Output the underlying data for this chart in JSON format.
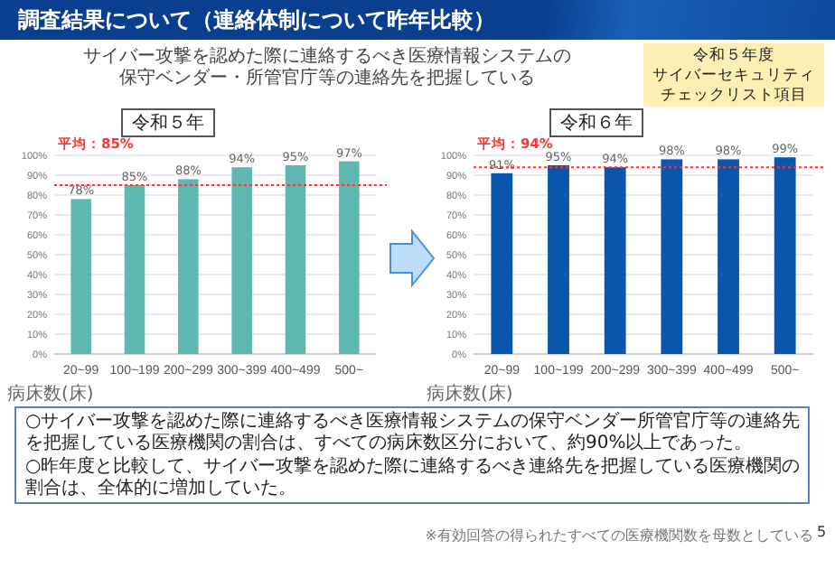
{
  "chart_data": [
    {
      "type": "bar",
      "title": "令和５年",
      "xlabel": "病床数(床)",
      "annotations": [
        "調査結果について（連絡体制について昨年比較）",
        "サイバー攻撃を認めた際に連絡するべき医療情報システムの保守ベンダー・所管官庁等の連絡先を把握している",
        "令和５年度",
        "サイバーセキュリティ",
        "チェックリスト項目"
      ],
      "categories": [
        "20~99",
        "100~199",
        "200~299",
        "300~399",
        "400~499",
        "500~"
      ],
      "values": [
        78,
        85,
        88,
        94,
        95,
        97
      ],
      "color": "#5fb8b0",
      "value_labels": [
        "78%",
        "85%",
        "88%",
        "94%",
        "95%",
        "97%"
      ],
      "ylim": [
        0,
        100
      ],
      "yticks": [
        {
          "value": 0,
          "label": "0%"
        },
        {
          "value": 10,
          "label": "10%"
        },
        {
          "value": 20,
          "label": "20%"
        },
        {
          "value": 30,
          "label": "30%"
        },
        {
          "value": 40,
          "label": "40%"
        },
        {
          "value": 50,
          "label": "50%"
        },
        {
          "value": 60,
          "label": "60%"
        },
        {
          "value": 70,
          "label": "70%"
        },
        {
          "value": 80,
          "label": "80%"
        },
        {
          "value": 90,
          "label": "90%"
        },
        {
          "value": 100,
          "label": "100%"
        }
      ],
      "ref_lines": [
        {
          "axis": "y",
          "value": 85,
          "label": "平均：85%",
          "color": "#ff3333",
          "line_style": "dotted"
        }
      ],
      "grid": "y"
    },
    {
      "type": "bar",
      "title": "令和６年",
      "xlabel": "病床数(床)",
      "annotations": [
        "○サイバー攻撃を認めた際に連絡するべき医療情報システムの保守ベンダー所管官庁等の連絡先を把握している医療機関の割合は、すべての病床数区分において、約90%以上であった。",
        "○昨年度と比較して、サイバー攻撃を認めた際に連絡するべき連絡先を把握している医療機関の割合は、全体的に増加していた。",
        "※有効回答の得られたすべての医療機関数を母数としている",
        "5"
      ],
      "categories": [
        "20~99",
        "100~199",
        "200~299",
        "300~399",
        "400~499",
        "500~"
      ],
      "values": [
        91,
        95,
        94,
        98,
        98,
        99
      ],
      "color": "#0b56ad",
      "value_labels": [
        "91%",
        "95%",
        "94%",
        "98%",
        "98%",
        "99%"
      ],
      "ylim": [
        0,
        100
      ],
      "yticks": [
        {
          "value": 0,
          "label": "0%"
        },
        {
          "value": 10,
          "label": "10%"
        },
        {
          "value": 20,
          "label": "20%"
        },
        {
          "value": 30,
          "label": "30%"
        },
        {
          "value": 40,
          "label": "40%"
        },
        {
          "value": 50,
          "label": "50%"
        },
        {
          "value": 60,
          "label": "60%"
        },
        {
          "value": 70,
          "label": "70%"
        },
        {
          "value": 80,
          "label": "80%"
        },
        {
          "value": 90,
          "label": "90%"
        },
        {
          "value": 100,
          "label": "100%"
        }
      ],
      "ref_lines": [
        {
          "axis": "y",
          "value": 94,
          "label": "平均：94%",
          "color": "#ff3333",
          "line_style": "dotted"
        }
      ],
      "grid": "y"
    }
  ]
}
